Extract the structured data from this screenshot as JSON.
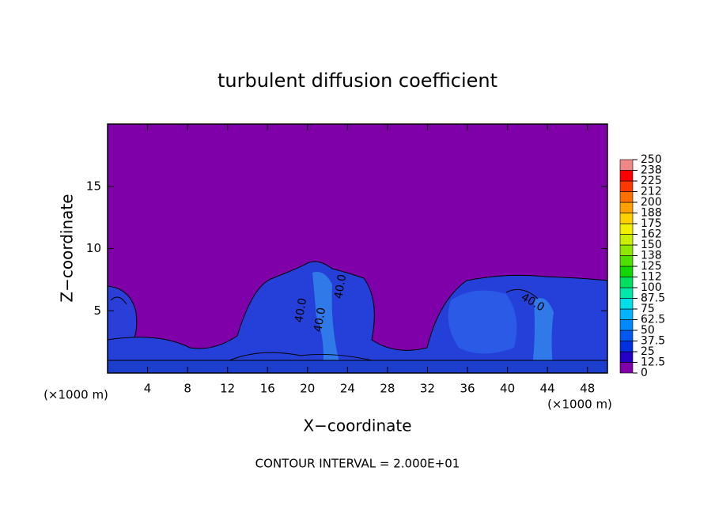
{
  "chart_data": {
    "type": "contour",
    "title": "turbulent diffusion coefficient",
    "x_label": "X−coordinate",
    "y_label": "Z−coordinate",
    "x_unit_labels": [
      "(×1000 m)",
      "(×1000 m)"
    ],
    "footnote": "CONTOUR INTERVAL = 2.000E+01",
    "contour_labels": [
      "40.0",
      "40.0",
      "40.0",
      "40.0"
    ],
    "xlim": [
      0,
      50
    ],
    "xticks": [
      4,
      8,
      12,
      16,
      20,
      24,
      28,
      32,
      36,
      40,
      44,
      48
    ],
    "ylim": [
      0,
      20
    ],
    "yticks": [
      5,
      10,
      15
    ],
    "colorbar": {
      "ticks": [
        0,
        12.5,
        25,
        37.5,
        50,
        62.5,
        75,
        87.5,
        100,
        {
          "value": 112.5,
          "label": "112"
        },
        125,
        {
          "value": 137.5,
          "label": "138"
        },
        150,
        {
          "value": 162.5,
          "label": "162"
        },
        175,
        {
          "value": 187.5,
          "label": "188"
        },
        200,
        {
          "value": 212.5,
          "label": "212"
        },
        225,
        {
          "value": 237.5,
          "label": "238"
        },
        250
      ],
      "colors": [
        "#7f00a8",
        "#2400c4",
        "#0030e0",
        "#0058f0",
        "#0088ff",
        "#00b4ff",
        "#00e0e8",
        "#00e8a8",
        "#00e060",
        "#10d800",
        "#50e000",
        "#90e800",
        "#c8f000",
        "#f0f000",
        "#ffd000",
        "#ffa000",
        "#ff7000",
        "#ff3800",
        "#ff0000",
        "#f08888"
      ]
    }
  }
}
